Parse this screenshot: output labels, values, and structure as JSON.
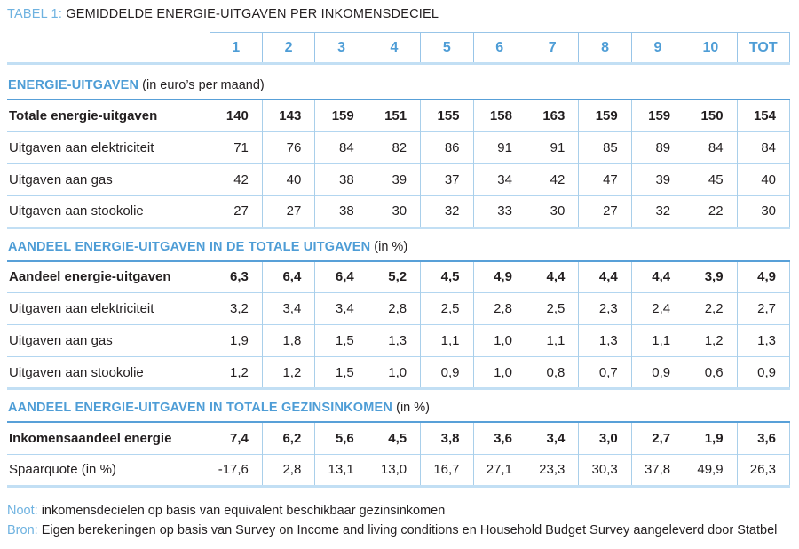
{
  "title": {
    "label": "TABEL 1:",
    "text": "GEMIDDELDE ENERGIE-UITGAVEN PER INKOMENSDECIEL"
  },
  "table": {
    "column_headers": [
      "1",
      "2",
      "3",
      "4",
      "5",
      "6",
      "7",
      "8",
      "9",
      "10",
      "TOT"
    ],
    "sections": [
      {
        "heading": "ENERGIE-UITGAVEN",
        "heading_suffix": "(in euro’s per maand)",
        "rows": [
          {
            "label": "Totale energie-uitgaven",
            "bold": true,
            "values": [
              "140",
              "143",
              "159",
              "151",
              "155",
              "158",
              "163",
              "159",
              "159",
              "150",
              "154"
            ]
          },
          {
            "label": "Uitgaven aan elektriciteit",
            "bold": false,
            "values": [
              "71",
              "76",
              "84",
              "82",
              "86",
              "91",
              "91",
              "85",
              "89",
              "84",
              "84"
            ]
          },
          {
            "label": "Uitgaven aan gas",
            "bold": false,
            "values": [
              "42",
              "40",
              "38",
              "39",
              "37",
              "34",
              "42",
              "47",
              "39",
              "45",
              "40"
            ]
          },
          {
            "label": "Uitgaven aan stookolie",
            "bold": false,
            "values": [
              "27",
              "27",
              "38",
              "30",
              "32",
              "33",
              "30",
              "27",
              "32",
              "22",
              "30"
            ]
          }
        ]
      },
      {
        "heading": "AANDEEL ENERGIE-UITGAVEN IN DE TOTALE UITGAVEN",
        "heading_suffix": "(in %)",
        "rows": [
          {
            "label": "Aandeel energie-uitgaven",
            "bold": true,
            "values": [
              "6,3",
              "6,4",
              "6,4",
              "5,2",
              "4,5",
              "4,9",
              "4,4",
              "4,4",
              "4,4",
              "3,9",
              "4,9"
            ]
          },
          {
            "label": "Uitgaven aan elektriciteit",
            "bold": false,
            "values": [
              "3,2",
              "3,4",
              "3,4",
              "2,8",
              "2,5",
              "2,8",
              "2,5",
              "2,3",
              "2,4",
              "2,2",
              "2,7"
            ]
          },
          {
            "label": "Uitgaven aan gas",
            "bold": false,
            "values": [
              "1,9",
              "1,8",
              "1,5",
              "1,3",
              "1,1",
              "1,0",
              "1,1",
              "1,3",
              "1,1",
              "1,2",
              "1,3"
            ]
          },
          {
            "label": "Uitgaven aan stookolie",
            "bold": false,
            "values": [
              "1,2",
              "1,2",
              "1,5",
              "1,0",
              "0,9",
              "1,0",
              "0,8",
              "0,7",
              "0,9",
              "0,6",
              "0,9"
            ]
          }
        ]
      },
      {
        "heading": "AANDEEL ENERGIE-UITGAVEN IN TOTALE GEZINSINKOMEN",
        "heading_suffix": "(in %)",
        "rows": [
          {
            "label": "Inkomensaandeel energie",
            "bold": true,
            "values": [
              "7,4",
              "6,2",
              "5,6",
              "4,5",
              "3,8",
              "3,6",
              "3,4",
              "3,0",
              "2,7",
              "1,9",
              "3,6"
            ]
          },
          {
            "label": "Spaarquote (in %)",
            "bold": false,
            "values": [
              "-17,6",
              "2,8",
              "13,1",
              "13,0",
              "16,7",
              "27,1",
              "23,3",
              "30,3",
              "37,8",
              "49,9",
              "26,3"
            ]
          }
        ]
      }
    ]
  },
  "notes": [
    {
      "label": "Noot:",
      "text": "inkomensdecielen op basis van equivalent beschikbaar gezinsinkomen"
    },
    {
      "label": "Bron:",
      "text": "Eigen berekeningen op basis van Survey on Income and living conditions en Household Budget Survey aangeleverd door Statbel"
    }
  ],
  "colors": {
    "accent_blue": "#4e9dd6",
    "light_blue": "#6eb2e0",
    "grid_light": "#b3d6f0",
    "grid_medium": "#58a0d8",
    "rule_thick": "#c2dff4",
    "text_dark": "#231f20"
  }
}
